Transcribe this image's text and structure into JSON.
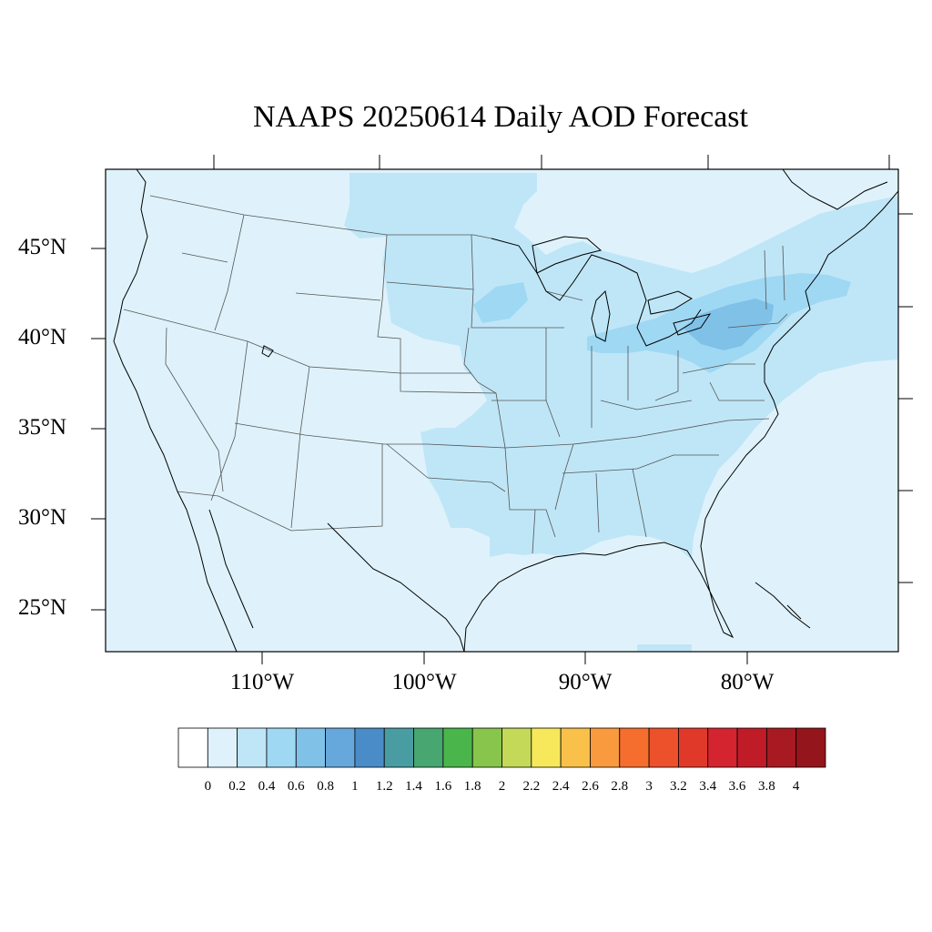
{
  "title": "NAAPS 20250614 Daily AOD Forecast",
  "lat_labels": [
    "45°N",
    "40°N",
    "35°N",
    "30°N",
    "25°N"
  ],
  "lon_labels": [
    "110°W",
    "100°W",
    "90°W",
    "80°W"
  ],
  "colorbar": {
    "labels": [
      "0",
      "0.2",
      "0.4",
      "0.6",
      "0.8",
      "1",
      "1.2",
      "1.4",
      "1.6",
      "1.8",
      "2",
      "2.2",
      "2.4",
      "2.6",
      "2.8",
      "3",
      "3.2",
      "3.4",
      "3.6",
      "3.8",
      "4"
    ],
    "colors": [
      "#ffffff",
      "#dff2fb",
      "#bfe6f7",
      "#9fd8f3",
      "#80c1e8",
      "#66a8dc",
      "#4a8cc8",
      "#4a9ca3",
      "#48a671",
      "#4ab54a",
      "#88c54c",
      "#c3d957",
      "#f7e85b",
      "#f9c04a",
      "#f99a3e",
      "#f56e2d",
      "#ec512b",
      "#e0392a",
      "#d42430",
      "#c01c28",
      "#a81a22",
      "#94161c"
    ]
  },
  "colors": {
    "background": "#dff2fb",
    "aod_02_04": "#bfe6f7",
    "aod_04_06": "#9fd8f3",
    "aod_06_08": "#80c1e8",
    "border": "#555555",
    "coast": "#000000"
  }
}
